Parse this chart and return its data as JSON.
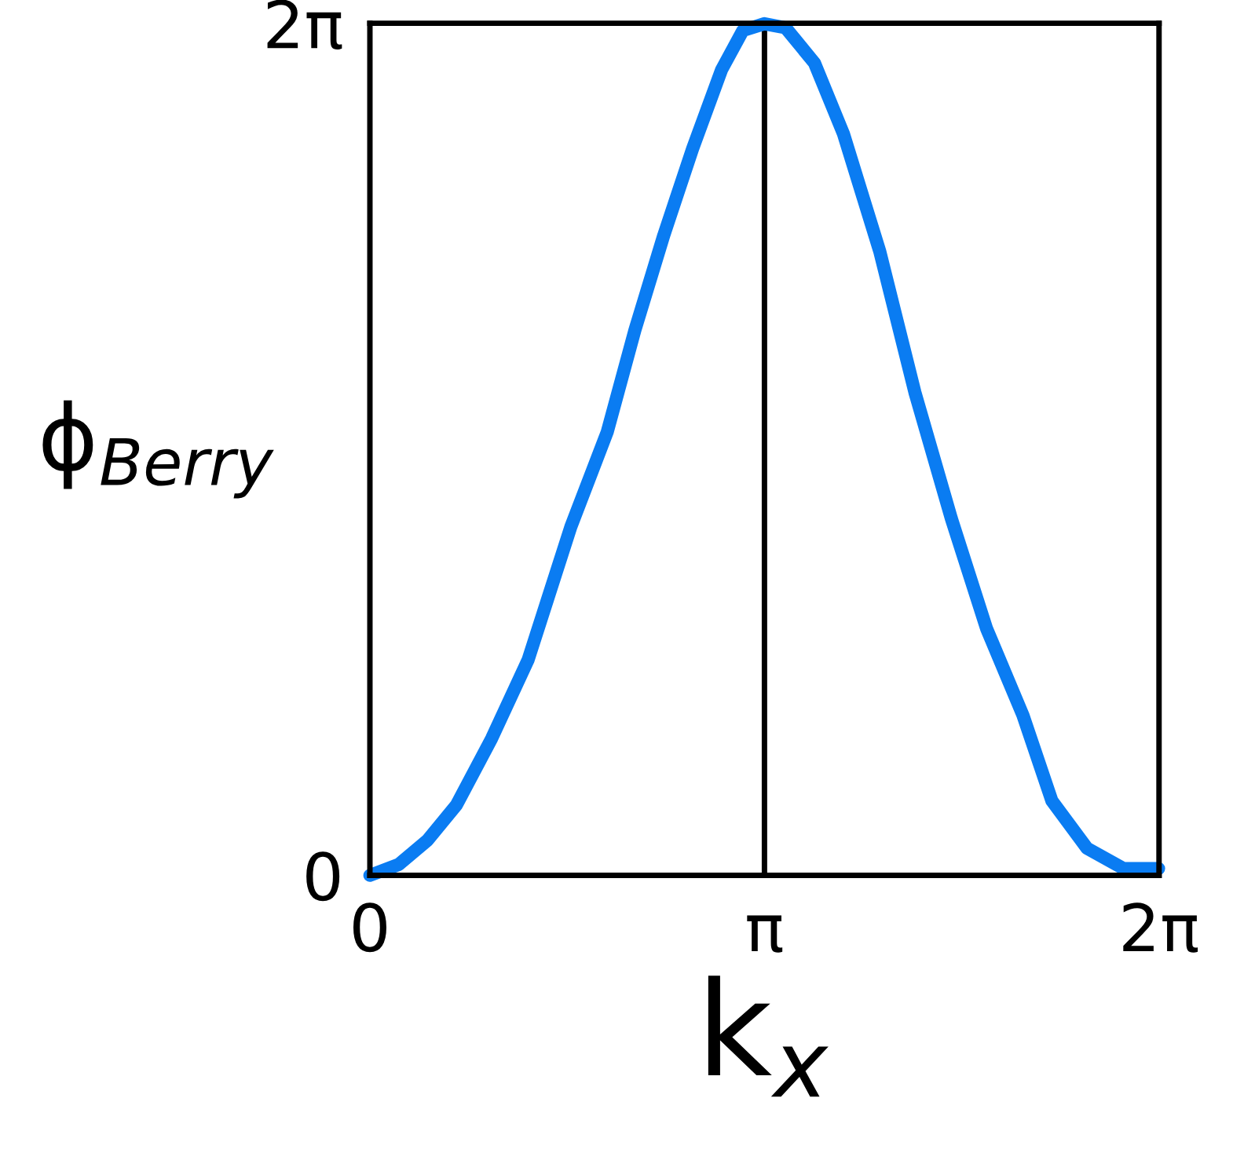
{
  "chart_data": {
    "type": "line",
    "xlabel": "k$_{x}$",
    "ylabel": "ϕ$_{Berry}$",
    "xlim": [
      0,
      6.2832
    ],
    "ylim": [
      0,
      6.2832
    ],
    "xticks": [
      0,
      {
        "value": 3.1416,
        "label": "π"
      },
      {
        "value": 6.2832,
        "label": "2π"
      }
    ],
    "yticks": [
      0,
      {
        "value": 6.2832,
        "label": "2π"
      }
    ],
    "grid": false,
    "legend": false,
    "marker": "none",
    "line_style": "solid",
    "ref_lines": [
      {
        "axis": "x",
        "value": 3.1416,
        "color": "#000000",
        "line_style": "solid"
      }
    ],
    "series": [
      {
        "color": "#0a7cf2",
        "x": [
          0,
          0.23,
          0.46,
          0.69,
          0.97,
          1.26,
          1.6,
          1.89,
          2.11,
          2.34,
          2.57,
          2.8,
          2.97,
          3.14,
          3.31,
          3.54,
          3.77,
          4.06,
          4.34,
          4.63,
          4.91,
          5.2,
          5.43,
          5.71,
          6.0,
          6.28
        ],
        "values": [
          0,
          0.08,
          0.26,
          0.52,
          1.01,
          1.59,
          2.57,
          3.27,
          4.02,
          4.72,
          5.36,
          5.94,
          6.23,
          6.28,
          6.25,
          5.99,
          5.47,
          4.6,
          3.56,
          2.63,
          1.82,
          1.18,
          0.55,
          0.2,
          0.05,
          0.05
        ]
      }
    ]
  }
}
